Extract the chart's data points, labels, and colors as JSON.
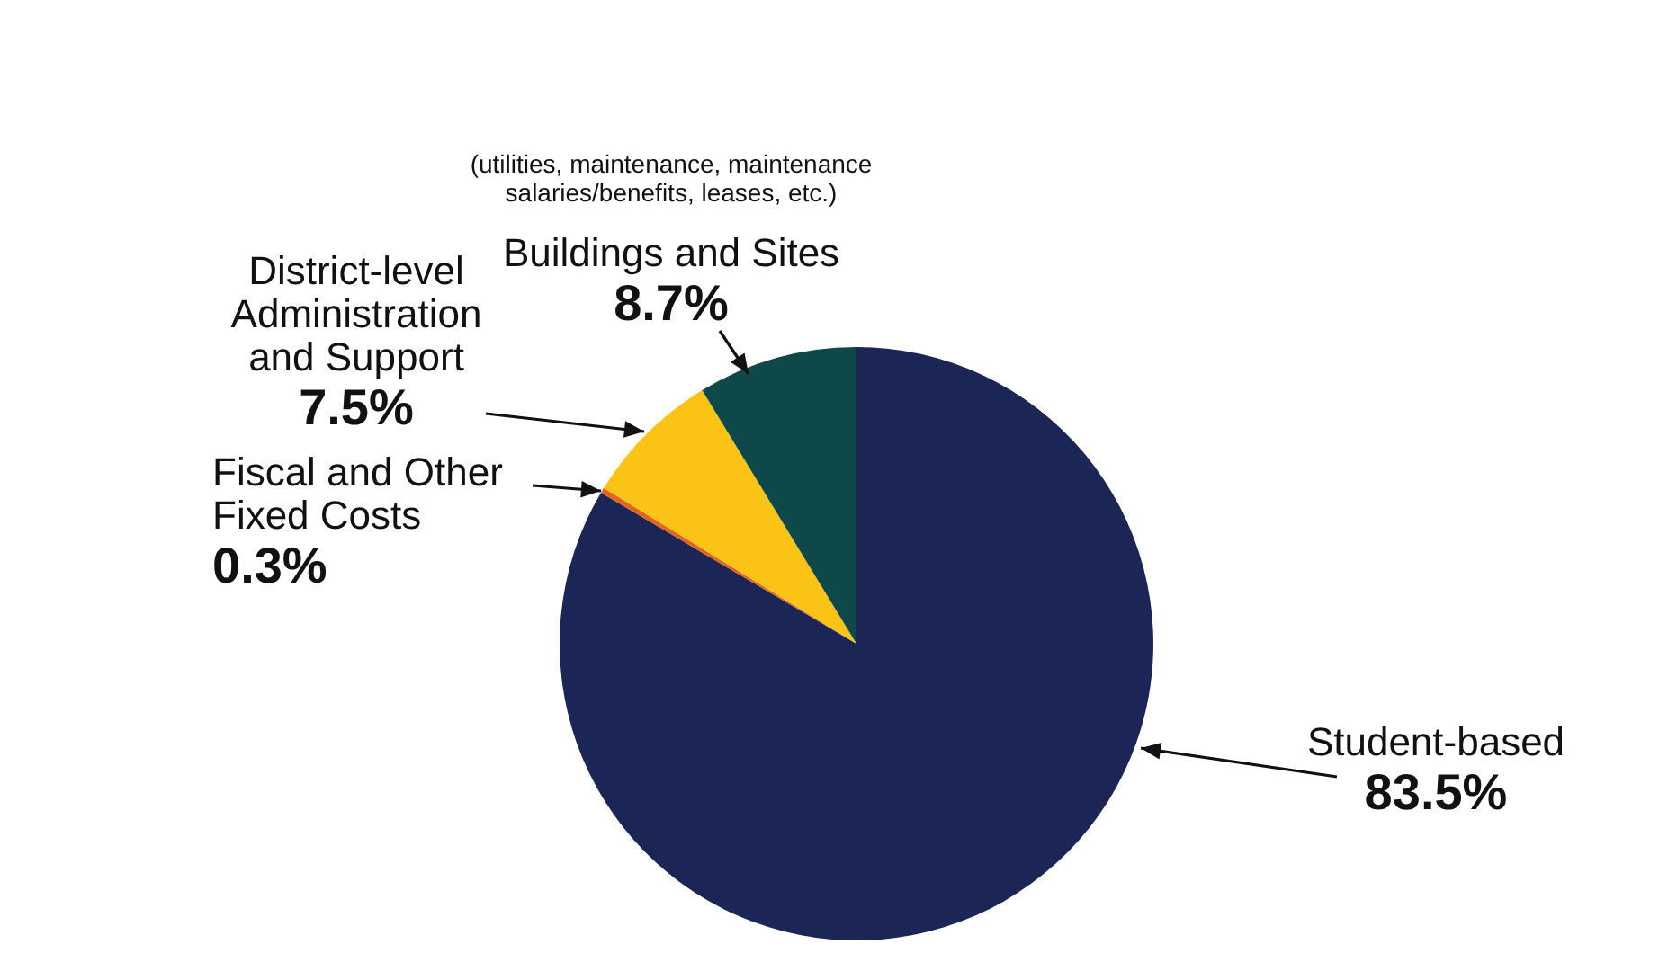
{
  "chart_data": {
    "type": "pie",
    "categories": [
      "Student-based",
      "Fiscal and Other Fixed Costs",
      "District-level Administration and Support",
      "Buildings and Sites"
    ],
    "values": [
      83.5,
      0.3,
      7.5,
      8.7
    ],
    "value_labels": [
      "83.5%",
      "0.3%",
      "7.5%",
      "8.7%"
    ],
    "colors": [
      "#1b2556",
      "#e0661c",
      "#fbc315",
      "#0f4848"
    ],
    "annotations": [
      "(utilities, maintenance, maintenance salaries/benefits, leases, etc.)"
    ],
    "legend": false
  }
}
